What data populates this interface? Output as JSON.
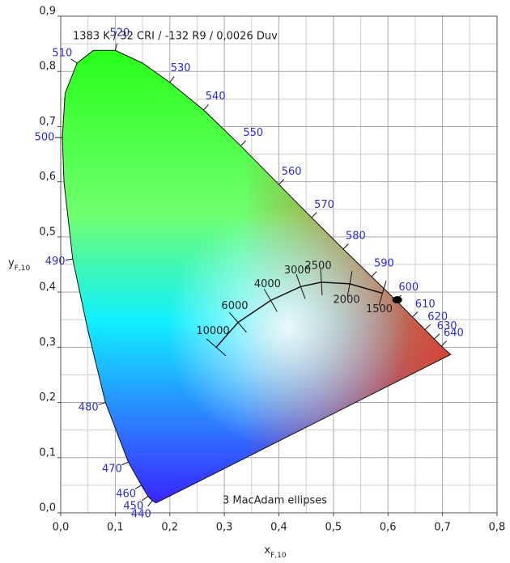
{
  "chart_data": {
    "type": "chromaticity",
    "annotation": "1383 K / 32 CRI / -132 R9 / 0,0026 Duv",
    "footnote": "3 MacAdam ellipses",
    "xlabel": "x",
    "xlabel_sub": "F,10",
    "ylabel": "y",
    "ylabel_sub": "F,10",
    "xlim": [
      0,
      0.8
    ],
    "ylim": [
      0,
      0.9
    ],
    "xticks": [
      {
        "value": 0,
        "label": "0,0"
      },
      {
        "value": 0.1,
        "label": "0,1"
      },
      {
        "value": 0.2,
        "label": "0,2"
      },
      {
        "value": 0.3,
        "label": "0,3"
      },
      {
        "value": 0.4,
        "label": "0,4"
      },
      {
        "value": 0.5,
        "label": "0,5"
      },
      {
        "value": 0.6,
        "label": "0,6"
      },
      {
        "value": 0.7,
        "label": "0,7"
      },
      {
        "value": 0.8,
        "label": "0,8"
      }
    ],
    "yticks": [
      {
        "value": 0,
        "label": "0,0"
      },
      {
        "value": 0.1,
        "label": "0,1"
      },
      {
        "value": 0.2,
        "label": "0,2"
      },
      {
        "value": 0.3,
        "label": "0,3"
      },
      {
        "value": 0.4,
        "label": "0,4"
      },
      {
        "value": 0.5,
        "label": "0,5"
      },
      {
        "value": 0.6,
        "label": "0,6"
      },
      {
        "value": 0.7,
        "label": "0,7"
      },
      {
        "value": 0.8,
        "label": "0,8"
      },
      {
        "value": 0.9,
        "label": "0,9"
      }
    ],
    "xminorticks": [
      0.05,
      0.15,
      0.25,
      0.35,
      0.45,
      0.55,
      0.65,
      0.75
    ],
    "yminorticks": [
      0.05,
      0.15,
      0.25,
      0.35,
      0.45,
      0.55,
      0.65,
      0.75,
      0.85
    ],
    "grid": true,
    "spectral_locus": {
      "label_color": "#2b2bd6",
      "wavelengths": [
        null,
        440,
        450,
        460,
        470,
        480,
        null,
        490,
        null,
        500,
        null,
        510,
        null,
        520,
        null,
        530,
        540,
        550,
        560,
        570,
        580,
        590,
        600,
        610,
        620,
        630,
        640,
        null
      ],
      "x": [
        0.175,
        0.168,
        0.16,
        0.148,
        0.124,
        0.082,
        0.05,
        0.022,
        0.006,
        0.003,
        0.008,
        0.03,
        0.06,
        0.1,
        0.15,
        0.2,
        0.262,
        0.33,
        0.4,
        0.46,
        0.518,
        0.57,
        0.615,
        0.645,
        0.668,
        0.685,
        0.698,
        0.715
      ],
      "y": [
        0.018,
        0.022,
        0.03,
        0.05,
        0.092,
        0.2,
        0.33,
        0.46,
        0.6,
        0.68,
        0.76,
        0.815,
        0.838,
        0.838,
        0.815,
        0.78,
        0.73,
        0.665,
        0.595,
        0.535,
        0.478,
        0.428,
        0.385,
        0.355,
        0.332,
        0.315,
        0.302,
        0.287
      ]
    },
    "planckian_locus": {
      "cct": [
        10000,
        6000,
        4000,
        3000,
        2500,
        2000,
        1500
      ],
      "x": [
        0.285,
        0.325,
        0.385,
        0.44,
        0.478,
        0.53,
        0.59
      ],
      "y": [
        0.3,
        0.345,
        0.385,
        0.41,
        0.418,
        0.415,
        0.398
      ]
    },
    "test_point": {
      "x": 0.617,
      "y": 0.386
    }
  }
}
